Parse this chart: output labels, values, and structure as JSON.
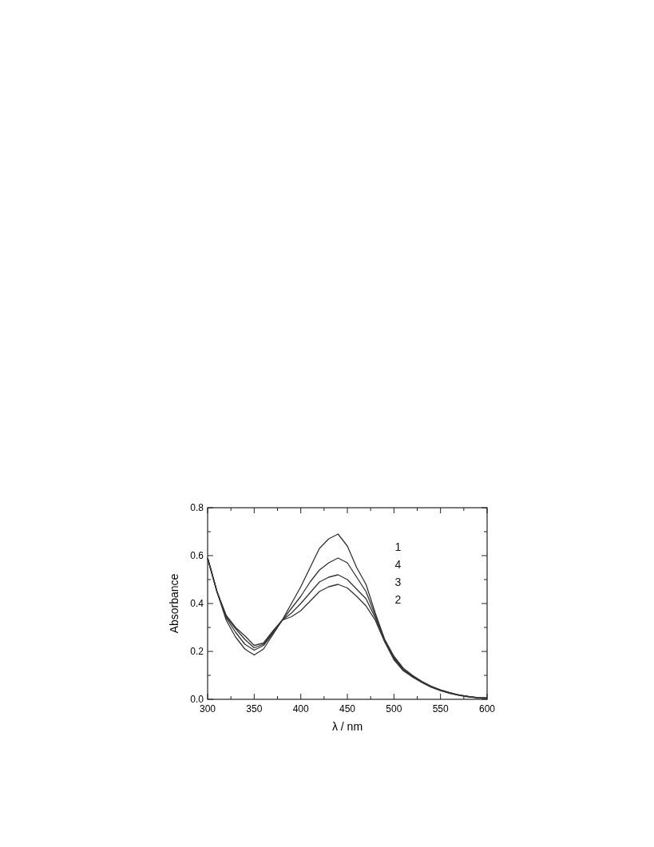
{
  "chart_data": {
    "type": "line",
    "xlabel": "λ / nm",
    "ylabel": "Absorbance",
    "xlim": [
      300,
      600
    ],
    "ylim": [
      0,
      0.8
    ],
    "xticks": [
      300,
      {
        "value": 325,
        "label": null
      },
      350,
      {
        "value": 375,
        "label": null
      },
      400,
      {
        "value": 425,
        "label": null
      },
      450,
      {
        "value": 475,
        "label": null
      },
      500,
      {
        "value": 525,
        "label": null
      },
      550,
      {
        "value": 575,
        "label": null
      },
      600
    ],
    "yticks": [
      {
        "value": 0,
        "label": "0.0"
      },
      {
        "value": 0.1,
        "label": null
      },
      {
        "value": 0.2,
        "label": "0.2"
      },
      {
        "value": 0.3,
        "label": null
      },
      {
        "value": 0.4,
        "label": "0.4"
      },
      {
        "value": 0.5,
        "label": null
      },
      {
        "value": 0.6,
        "label": "0.6"
      },
      {
        "value": 0.7,
        "label": null
      },
      {
        "value": 0.8,
        "label": "0.8"
      }
    ],
    "annotations": [
      "1",
      "4",
      "3",
      "2"
    ],
    "x": [
      300,
      310,
      320,
      330,
      340,
      350,
      360,
      370,
      380,
      390,
      400,
      410,
      420,
      430,
      440,
      450,
      460,
      470,
      480,
      490,
      500,
      510,
      520,
      530,
      540,
      550,
      560,
      570,
      580,
      590,
      600
    ],
    "grid": false,
    "legend": false,
    "marker": "none",
    "line_style": "solid",
    "series": [
      {
        "color": "#333333",
        "values": [
          0.59,
          0.45,
          0.33,
          0.26,
          0.21,
          0.185,
          0.21,
          0.27,
          0.33,
          0.4,
          0.47,
          0.55,
          0.63,
          0.67,
          0.69,
          0.64,
          0.55,
          0.48,
          0.36,
          0.25,
          0.18,
          0.13,
          0.1,
          0.075,
          0.055,
          0.04,
          0.028,
          0.018,
          0.012,
          0.007,
          0.005
        ]
      },
      {
        "color": "#333333",
        "values": [
          0.59,
          0.45,
          0.34,
          0.28,
          0.23,
          0.205,
          0.225,
          0.275,
          0.33,
          0.38,
          0.43,
          0.49,
          0.54,
          0.57,
          0.59,
          0.57,
          0.51,
          0.45,
          0.35,
          0.25,
          0.175,
          0.125,
          0.097,
          0.073,
          0.053,
          0.038,
          0.027,
          0.018,
          0.012,
          0.007,
          0.005
        ]
      },
      {
        "color": "#333333",
        "values": [
          0.59,
          0.45,
          0.345,
          0.295,
          0.25,
          0.215,
          0.23,
          0.28,
          0.33,
          0.36,
          0.4,
          0.445,
          0.49,
          0.51,
          0.52,
          0.5,
          0.46,
          0.42,
          0.34,
          0.245,
          0.17,
          0.12,
          0.095,
          0.071,
          0.052,
          0.037,
          0.026,
          0.017,
          0.011,
          0.006,
          0.005
        ]
      },
      {
        "color": "#333333",
        "values": [
          0.59,
          0.45,
          0.35,
          0.3,
          0.265,
          0.225,
          0.235,
          0.285,
          0.33,
          0.345,
          0.37,
          0.41,
          0.45,
          0.47,
          0.48,
          0.465,
          0.43,
          0.39,
          0.33,
          0.24,
          0.165,
          0.12,
          0.093,
          0.07,
          0.05,
          0.036,
          0.025,
          0.016,
          0.01,
          0.006,
          0.005
        ]
      }
    ]
  }
}
